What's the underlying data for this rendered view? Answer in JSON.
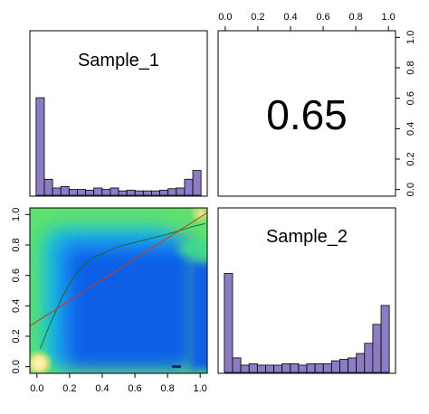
{
  "chart_data": [
    {
      "type": "histogram",
      "panel": "top-left",
      "title": "Sample_1",
      "bin_edges": [
        0,
        0.05,
        0.1,
        0.15,
        0.2,
        0.25,
        0.3,
        0.35,
        0.4,
        0.45,
        0.5,
        0.55,
        0.6,
        0.65,
        0.7,
        0.75,
        0.8,
        0.85,
        0.9,
        0.95,
        1.0
      ],
      "values": [
        0.67,
        0.11,
        0.05,
        0.06,
        0.04,
        0.04,
        0.035,
        0.05,
        0.04,
        0.05,
        0.03,
        0.035,
        0.03,
        0.03,
        0.03,
        0.035,
        0.045,
        0.05,
        0.11,
        0.17
      ],
      "bar_color": "#8b7cc4"
    },
    {
      "type": "text",
      "panel": "top-right",
      "value": "0.65",
      "axes": {
        "top_ticks": [
          "0.0",
          "0.2",
          "0.4",
          "0.6",
          "0.8",
          "1.0"
        ],
        "right_ticks": [
          "0.0",
          "0.2",
          "0.4",
          "0.6",
          "0.8",
          "1.0"
        ]
      }
    },
    {
      "type": "heatmap",
      "panel": "bottom-left",
      "xlim": [
        0,
        1
      ],
      "ylim": [
        0,
        1
      ],
      "x_ticks": [
        "0.0",
        "0.2",
        "0.4",
        "0.6",
        "0.8",
        "1.0"
      ],
      "y_ticks": [
        "0.0",
        "0.2",
        "0.4",
        "0.6",
        "0.8",
        "1.0"
      ],
      "colors": {
        "low": "#1060e6",
        "mid": "#18c8d0",
        "high": "#60e070",
        "peak": "#fff4b0"
      },
      "fit_line": {
        "color": "#cc3a1a",
        "x": [
          -0.04,
          1.04
        ],
        "y": [
          0.27,
          1.01
        ]
      },
      "smooth_line": {
        "color": "#1a6a3a",
        "x": [
          0.02,
          0.08,
          0.15,
          0.22,
          0.28,
          0.35,
          0.5,
          0.65,
          0.8,
          0.95,
          1.03
        ],
        "y": [
          0.12,
          0.28,
          0.45,
          0.58,
          0.66,
          0.72,
          0.79,
          0.83,
          0.87,
          0.92,
          0.94
        ]
      }
    },
    {
      "type": "histogram",
      "panel": "bottom-right",
      "title": "Sample_2",
      "bin_edges": [
        0,
        0.05,
        0.1,
        0.15,
        0.2,
        0.25,
        0.3,
        0.35,
        0.4,
        0.45,
        0.5,
        0.55,
        0.6,
        0.65,
        0.7,
        0.75,
        0.8,
        0.85,
        0.9,
        0.95,
        1.0
      ],
      "values": [
        0.68,
        0.1,
        0.05,
        0.06,
        0.05,
        0.05,
        0.05,
        0.06,
        0.06,
        0.05,
        0.06,
        0.06,
        0.06,
        0.08,
        0.09,
        0.1,
        0.13,
        0.2,
        0.33,
        0.46
      ],
      "bar_color": "#8b7cc4"
    }
  ]
}
